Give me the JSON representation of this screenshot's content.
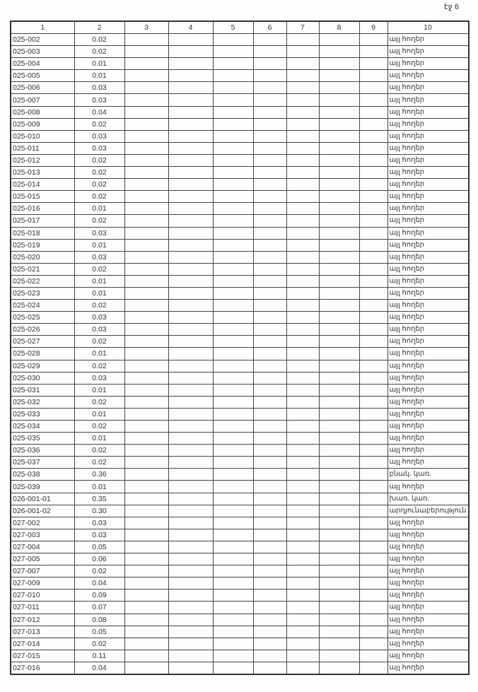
{
  "page_label": "էջ 6",
  "columns": [
    "1",
    "2",
    "3",
    "4",
    "5",
    "6",
    "7",
    "8",
    "9",
    "10"
  ],
  "rows": [
    [
      "025-002",
      "0.02",
      "այլ հողեր"
    ],
    [
      "025-003",
      "0.02",
      "այլ հողեր"
    ],
    [
      "025-004",
      "0.01",
      "այլ հողեր"
    ],
    [
      "025-005",
      "0.01",
      "այլ հողեր"
    ],
    [
      "025-006",
      "0.03",
      "այլ հողեր"
    ],
    [
      "025-007",
      "0.03",
      "այլ հողեր"
    ],
    [
      "025-008",
      "0.04",
      "այլ հողեր"
    ],
    [
      "025-009",
      "0.02",
      "այլ հողեր"
    ],
    [
      "025-010",
      "0.03",
      "այլ հողեր"
    ],
    [
      "025-011",
      "0.03",
      "այլ հողեր"
    ],
    [
      "025-012",
      "0.02",
      "այլ հողեր"
    ],
    [
      "025-013",
      "0.02",
      "այլ հողեր"
    ],
    [
      "025-014",
      "0.02",
      "այլ հողեր"
    ],
    [
      "025-015",
      "0.02",
      "այլ հողեր"
    ],
    [
      "025-016",
      "0.01",
      "այլ հողեր"
    ],
    [
      "025-017",
      "0.02",
      "այլ հողեր"
    ],
    [
      "025-018",
      "0.03",
      "այլ հողեր"
    ],
    [
      "025-019",
      "0.01",
      "այլ հողեր"
    ],
    [
      "025-020",
      "0.03",
      "այլ հողեր"
    ],
    [
      "025-021",
      "0.02",
      "այլ հողեր"
    ],
    [
      "025-022",
      "0.01",
      "այլ հողեր"
    ],
    [
      "025-023",
      "0.01",
      "այլ հողեր"
    ],
    [
      "025-024",
      "0.02",
      "այլ հողեր"
    ],
    [
      "025-025",
      "0.03",
      "այլ հողեր"
    ],
    [
      "025-026",
      "0.03",
      "այլ հողեր"
    ],
    [
      "025-027",
      "0.02",
      "այլ հողեր"
    ],
    [
      "025-028",
      "0.01",
      "այլ հողեր"
    ],
    [
      "025-029",
      "0.02",
      "այլ հողեր"
    ],
    [
      "025-030",
      "0.03",
      "այլ հողեր"
    ],
    [
      "025-031",
      "0.01",
      "այլ հողեր"
    ],
    [
      "025-032",
      "0.02",
      "այլ հողեր"
    ],
    [
      "025-033",
      "0.01",
      "այլ հողեր"
    ],
    [
      "025-034",
      "0.02",
      "այլ հողեր"
    ],
    [
      "025-035",
      "0.01",
      "այլ հողեր"
    ],
    [
      "025-036",
      "0.02",
      "այլ հողեր"
    ],
    [
      "025-037",
      "0.02",
      "այլ հողեր"
    ],
    [
      "025-038",
      "0.36",
      "բնակ. կառ."
    ],
    [
      "025-039",
      "0.01",
      "այլ հողեր"
    ],
    [
      "026-001-01",
      "0.35",
      "խառ. կառ."
    ],
    [
      "026-001-02",
      "0.30",
      "արդյունաբերություն"
    ],
    [
      "027-002",
      "0.03",
      "այլ հողեր"
    ],
    [
      "027-003",
      "0.03",
      "այլ հողեր"
    ],
    [
      "027-004",
      "0.05",
      "այլ հողեր"
    ],
    [
      "027-005",
      "0.06",
      "այլ հողեր"
    ],
    [
      "027-007",
      "0.02",
      "այլ հողեր"
    ],
    [
      "027-009",
      "0.04",
      "այլ հողեր"
    ],
    [
      "027-010",
      "0.09",
      "այլ հողեր"
    ],
    [
      "027-011",
      "0.07",
      "այլ հողեր"
    ],
    [
      "027-012",
      "0.08",
      "այլ հողեր"
    ],
    [
      "027-013",
      "0.05",
      "այլ հողեր"
    ],
    [
      "027-014",
      "0.02",
      "այլ հողեր"
    ],
    [
      "027-015",
      "0.11",
      "այլ հողեր"
    ],
    [
      "027-016",
      "0.04",
      "այլ հողեր"
    ]
  ]
}
